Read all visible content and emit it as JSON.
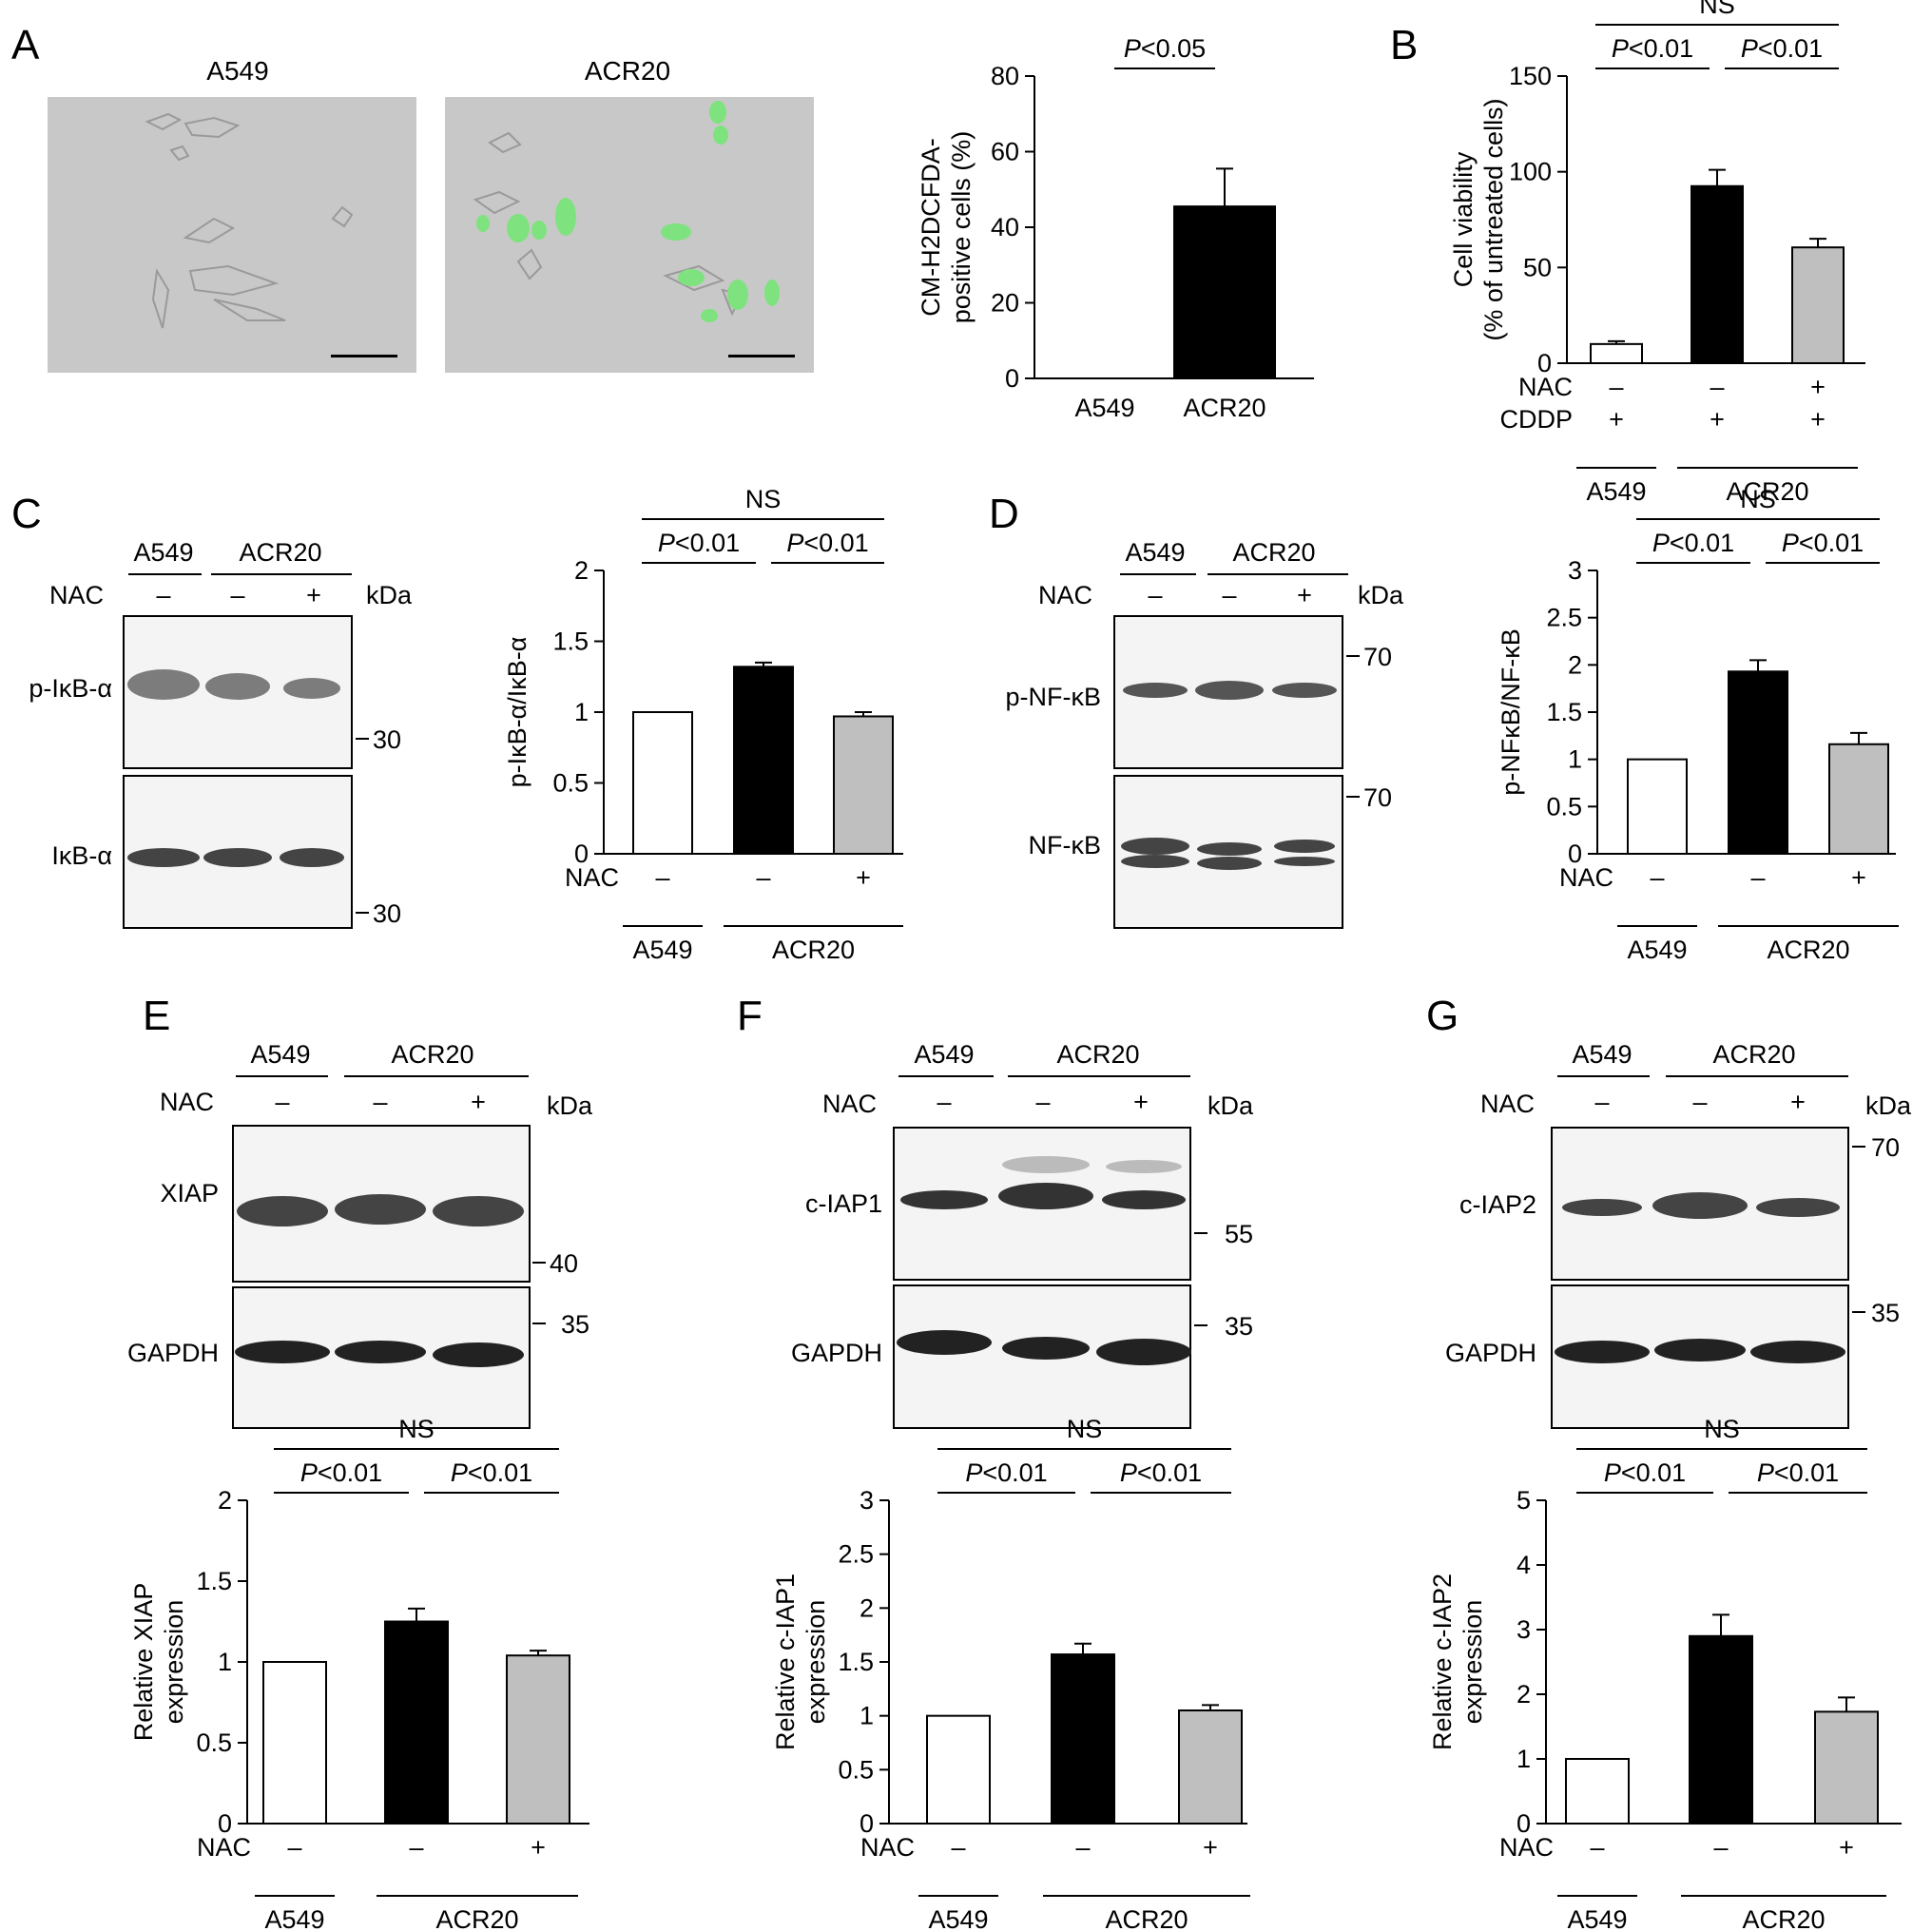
{
  "panel_letters": [
    "A",
    "B",
    "C",
    "D",
    "E",
    "F",
    "G"
  ],
  "colors": {
    "white": "#ffffff",
    "black": "#000000",
    "gray": "#bfbfbf",
    "micrograph": "#c8c8c8",
    "fluorescence": "#7ee37e",
    "blot": "#f4f4f4"
  },
  "microscopy": {
    "a549_label": "A549",
    "acr20_label": "ACR20",
    "a549_icon": "brightfield-micrograph",
    "acr20_icon": "fluorescence-overlay-micrograph"
  },
  "blots": {
    "kda_label": "kDa",
    "nac_label": "NAC",
    "minus": "–",
    "plus": "+",
    "group1": "A549",
    "group2": "ACR20",
    "C": {
      "rows": [
        {
          "label": "p-IκB-α",
          "marker": "30"
        },
        {
          "label": "IκB-α",
          "marker": "30"
        }
      ]
    },
    "D": {
      "rows": [
        {
          "label": "p-NF-κB",
          "marker": "70"
        },
        {
          "label": "NF-κB",
          "marker": "70"
        }
      ]
    },
    "E": {
      "rows": [
        {
          "label": "XIAP",
          "marker": "40"
        },
        {
          "label": "GAPDH",
          "marker": "35"
        }
      ]
    },
    "F": {
      "rows": [
        {
          "label": "c-IAP1",
          "marker": "55"
        },
        {
          "label": "GAPDH",
          "marker": "35"
        }
      ]
    },
    "G": {
      "rows": [
        {
          "label": "c-IAP2",
          "marker": "70"
        },
        {
          "label": "GAPDH",
          "marker": "35"
        }
      ]
    }
  },
  "chart_data": [
    {
      "id": "A",
      "type": "bar",
      "categories": [
        "A549",
        "ACR20"
      ],
      "values": [
        0,
        45.5
      ],
      "errors": [
        0,
        10
      ],
      "fills": [
        "white",
        "black"
      ],
      "ylabel": [
        "CM-H2DCFDA-",
        "positive cells (%)"
      ],
      "ylim": [
        0,
        80
      ],
      "yticks": [
        "0",
        "20",
        "40",
        "60",
        "80"
      ],
      "comparisons": [
        {
          "from": 0,
          "to": 1,
          "p": "<0.05"
        }
      ]
    },
    {
      "id": "B",
      "type": "bar",
      "categories": [
        "A549",
        "ACR20",
        "ACR20"
      ],
      "values": [
        10,
        92.5,
        60.5
      ],
      "errors": [
        1.5,
        8.5,
        4.5
      ],
      "fills": [
        "white",
        "black",
        "gray"
      ],
      "ylabel": [
        "Cell viability",
        "(% of untreated cells)"
      ],
      "ylim": [
        0,
        150
      ],
      "yticks": [
        "0",
        "50",
        "100",
        "150"
      ],
      "treatments": [
        {
          "name": "NAC",
          "values": [
            "–",
            "–",
            "+"
          ]
        },
        {
          "name": "CDDP",
          "values": [
            "+",
            "+",
            "+"
          ]
        }
      ],
      "groups": [
        {
          "label": "A549",
          "from": 0,
          "to": 0
        },
        {
          "label": "ACR20",
          "from": 1,
          "to": 2
        }
      ],
      "comparisons": [
        {
          "from": 0,
          "to": 1,
          "p": "<0.01"
        },
        {
          "from": 1,
          "to": 2,
          "p": "<0.01"
        },
        {
          "from": 0,
          "to": 2,
          "text": "NS"
        }
      ]
    },
    {
      "id": "C",
      "type": "bar",
      "categories": [
        "A549",
        "ACR20",
        "ACR20"
      ],
      "values": [
        1.0,
        1.32,
        0.97
      ],
      "errors": [
        0,
        0.03,
        0.03
      ],
      "fills": [
        "white",
        "black",
        "gray"
      ],
      "ylabel": [
        "p-IκB-α/IκB-α"
      ],
      "ylim": [
        0,
        2
      ],
      "yticks": [
        "0",
        "0.5",
        "1",
        "1.5",
        "2"
      ],
      "treatments": [
        {
          "name": "NAC",
          "values": [
            "–",
            "–",
            "+"
          ]
        }
      ],
      "groups": [
        {
          "label": "A549",
          "from": 0,
          "to": 0
        },
        {
          "label": "ACR20",
          "from": 1,
          "to": 2
        }
      ],
      "comparisons": [
        {
          "from": 0,
          "to": 1,
          "p": "<0.01"
        },
        {
          "from": 1,
          "to": 2,
          "p": "<0.01"
        },
        {
          "from": 0,
          "to": 2,
          "text": "NS"
        }
      ]
    },
    {
      "id": "D",
      "type": "bar",
      "categories": [
        "A549",
        "ACR20",
        "ACR20"
      ],
      "values": [
        1.0,
        1.93,
        1.16
      ],
      "errors": [
        0,
        0.12,
        0.12
      ],
      "fills": [
        "white",
        "black",
        "gray"
      ],
      "ylabel": [
        "p-NFκB/NF-κB"
      ],
      "ylim": [
        0,
        3
      ],
      "yticks": [
        "0",
        "0.5",
        "1",
        "1.5",
        "2",
        "2.5",
        "3"
      ],
      "treatments": [
        {
          "name": "NAC",
          "values": [
            "–",
            "–",
            "+"
          ]
        }
      ],
      "groups": [
        {
          "label": "A549",
          "from": 0,
          "to": 0
        },
        {
          "label": "ACR20",
          "from": 1,
          "to": 2
        }
      ],
      "comparisons": [
        {
          "from": 0,
          "to": 1,
          "p": "<0.01"
        },
        {
          "from": 1,
          "to": 2,
          "p": "<0.01"
        },
        {
          "from": 0,
          "to": 2,
          "text": "NS"
        }
      ]
    },
    {
      "id": "E",
      "type": "bar",
      "categories": [
        "A549",
        "ACR20",
        "ACR20"
      ],
      "values": [
        1.0,
        1.25,
        1.04
      ],
      "errors": [
        0,
        0.08,
        0.03
      ],
      "fills": [
        "white",
        "black",
        "gray"
      ],
      "ylabel": [
        "Relative XIAP",
        "expression"
      ],
      "ylim": [
        0,
        2
      ],
      "yticks": [
        "0",
        "0.5",
        "1",
        "1.5",
        "2"
      ],
      "treatments": [
        {
          "name": "NAC",
          "values": [
            "–",
            "–",
            "+"
          ]
        }
      ],
      "groups": [
        {
          "label": "A549",
          "from": 0,
          "to": 0
        },
        {
          "label": "ACR20",
          "from": 1,
          "to": 2
        }
      ],
      "comparisons": [
        {
          "from": 0,
          "to": 1,
          "p": "<0.01"
        },
        {
          "from": 1,
          "to": 2,
          "p": "<0.01"
        },
        {
          "from": 0,
          "to": 2,
          "text": "NS"
        }
      ]
    },
    {
      "id": "F",
      "type": "bar",
      "categories": [
        "A549",
        "ACR20",
        "ACR20"
      ],
      "values": [
        1.0,
        1.57,
        1.05
      ],
      "errors": [
        0,
        0.1,
        0.05
      ],
      "fills": [
        "white",
        "black",
        "gray"
      ],
      "ylabel": [
        "Relative c-IAP1",
        "expression"
      ],
      "ylim": [
        0,
        3
      ],
      "yticks": [
        "0",
        "0.5",
        "1",
        "1.5",
        "2",
        "2.5",
        "3"
      ],
      "treatments": [
        {
          "name": "NAC",
          "values": [
            "–",
            "–",
            "+"
          ]
        }
      ],
      "groups": [
        {
          "label": "A549",
          "from": 0,
          "to": 0
        },
        {
          "label": "ACR20",
          "from": 1,
          "to": 2
        }
      ],
      "comparisons": [
        {
          "from": 0,
          "to": 1,
          "p": "<0.01"
        },
        {
          "from": 1,
          "to": 2,
          "p": "<0.01"
        },
        {
          "from": 0,
          "to": 2,
          "text": "NS"
        }
      ]
    },
    {
      "id": "G",
      "type": "bar",
      "categories": [
        "A549",
        "ACR20",
        "ACR20"
      ],
      "values": [
        1.0,
        2.9,
        1.73
      ],
      "errors": [
        0,
        0.33,
        0.22
      ],
      "fills": [
        "white",
        "black",
        "gray"
      ],
      "ylabel": [
        "Relative c-IAP2",
        "expression"
      ],
      "ylim": [
        0,
        5
      ],
      "yticks": [
        "0",
        "1",
        "2",
        "3",
        "4",
        "5"
      ],
      "treatments": [
        {
          "name": "NAC",
          "values": [
            "–",
            "–",
            "+"
          ]
        }
      ],
      "groups": [
        {
          "label": "A549",
          "from": 0,
          "to": 0
        },
        {
          "label": "ACR20",
          "from": 1,
          "to": 2
        }
      ],
      "comparisons": [
        {
          "from": 0,
          "to": 1,
          "p": "<0.01"
        },
        {
          "from": 1,
          "to": 2,
          "p": "<0.01"
        },
        {
          "from": 0,
          "to": 2,
          "text": "NS"
        }
      ]
    }
  ]
}
